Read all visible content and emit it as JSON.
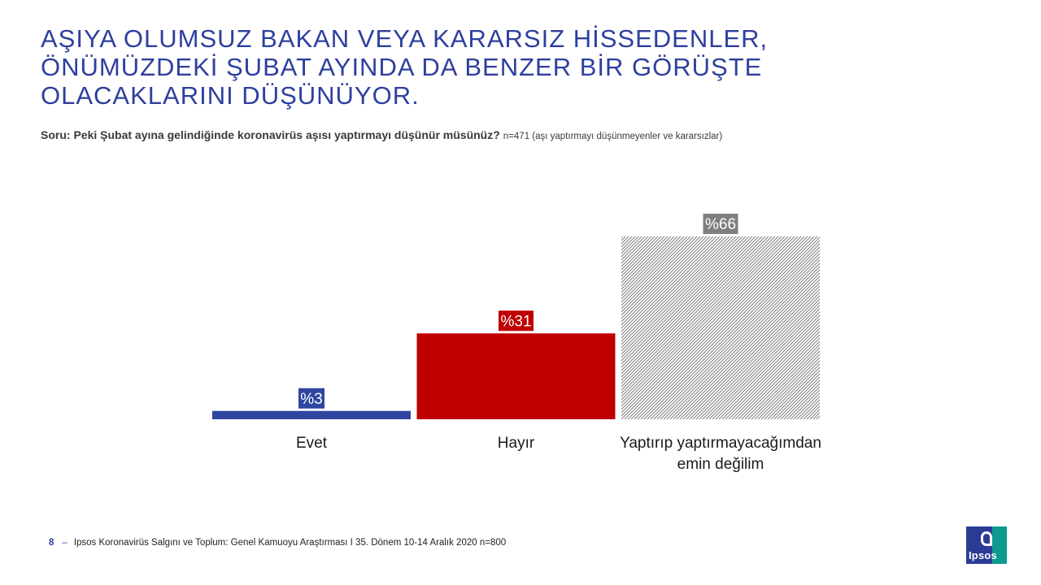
{
  "title_lines": [
    "AŞIYA OLUMSUZ BAKAN VEYA KARARSIZ HİSSEDENLER,",
    "ÖNÜMÜZDEKİ ŞUBAT AYINDA DA BENZER BİR GÖRÜŞTE",
    "OLACAKLARINI DÜŞÜNÜYOR."
  ],
  "question": {
    "text": "Soru: Peki Şubat ayına gelindiğinde koronavirüs aşısı yaptırmayı düşünür müsünüz?",
    "n_note": "n=471 (aşı yaptırmayı düşünmeyenler ve kararsızlar)"
  },
  "chart_data": {
    "type": "bar",
    "categories": [
      [
        "Evet"
      ],
      [
        "Hayır"
      ],
      [
        "Yaptırıp yaptırmayacağımdan",
        "emin değilim"
      ]
    ],
    "values": [
      3,
      31,
      66
    ],
    "value_labels": [
      "%3",
      "%31",
      "%66"
    ],
    "ylim": [
      0,
      66
    ],
    "colors": [
      "#2e46a0",
      "#c00000",
      "#7f7f7f"
    ],
    "fills": [
      "solid",
      "solid",
      "hatched"
    ],
    "title": "",
    "xlabel": "",
    "ylabel": ""
  },
  "footer": {
    "page_number": "8",
    "dash": "–",
    "source": "Ipsos Koronavirüs Salgını ve Toplum: Genel Kamuoyu Araştırması I 35. Dönem 10-14 Aralık 2020 n=800"
  },
  "logo": {
    "text": "Ipsos"
  }
}
